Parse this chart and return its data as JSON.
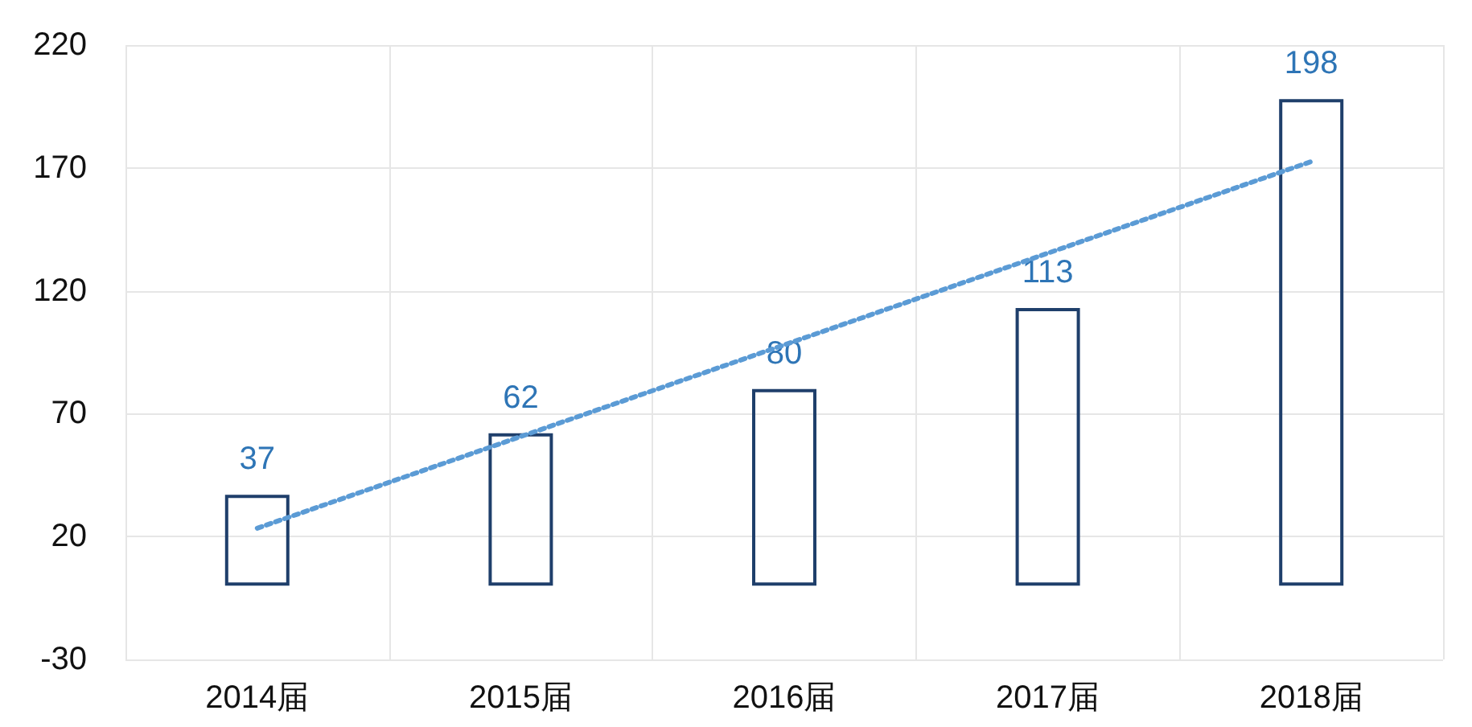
{
  "chart_data": {
    "type": "bar",
    "categories": [
      "2014届",
      "2015届",
      "2016届",
      "2017届",
      "2018届"
    ],
    "series": [
      {
        "color": "#1f3f6b",
        "values": [
          37,
          62,
          80,
          113,
          198
        ],
        "value_labels": [
          "37",
          "62",
          "80",
          "113",
          "198"
        ]
      },
      {
        "type": "line",
        "color": "#5b9bd5",
        "values": [
          23.4,
          60.7,
          98,
          135.3,
          172.6
        ],
        "line_style": "dotted",
        "marker": "none"
      }
    ],
    "ylim": [
      -30,
      220
    ],
    "yticks": [
      -30,
      20,
      70,
      120,
      170,
      220
    ],
    "grid": true
  }
}
